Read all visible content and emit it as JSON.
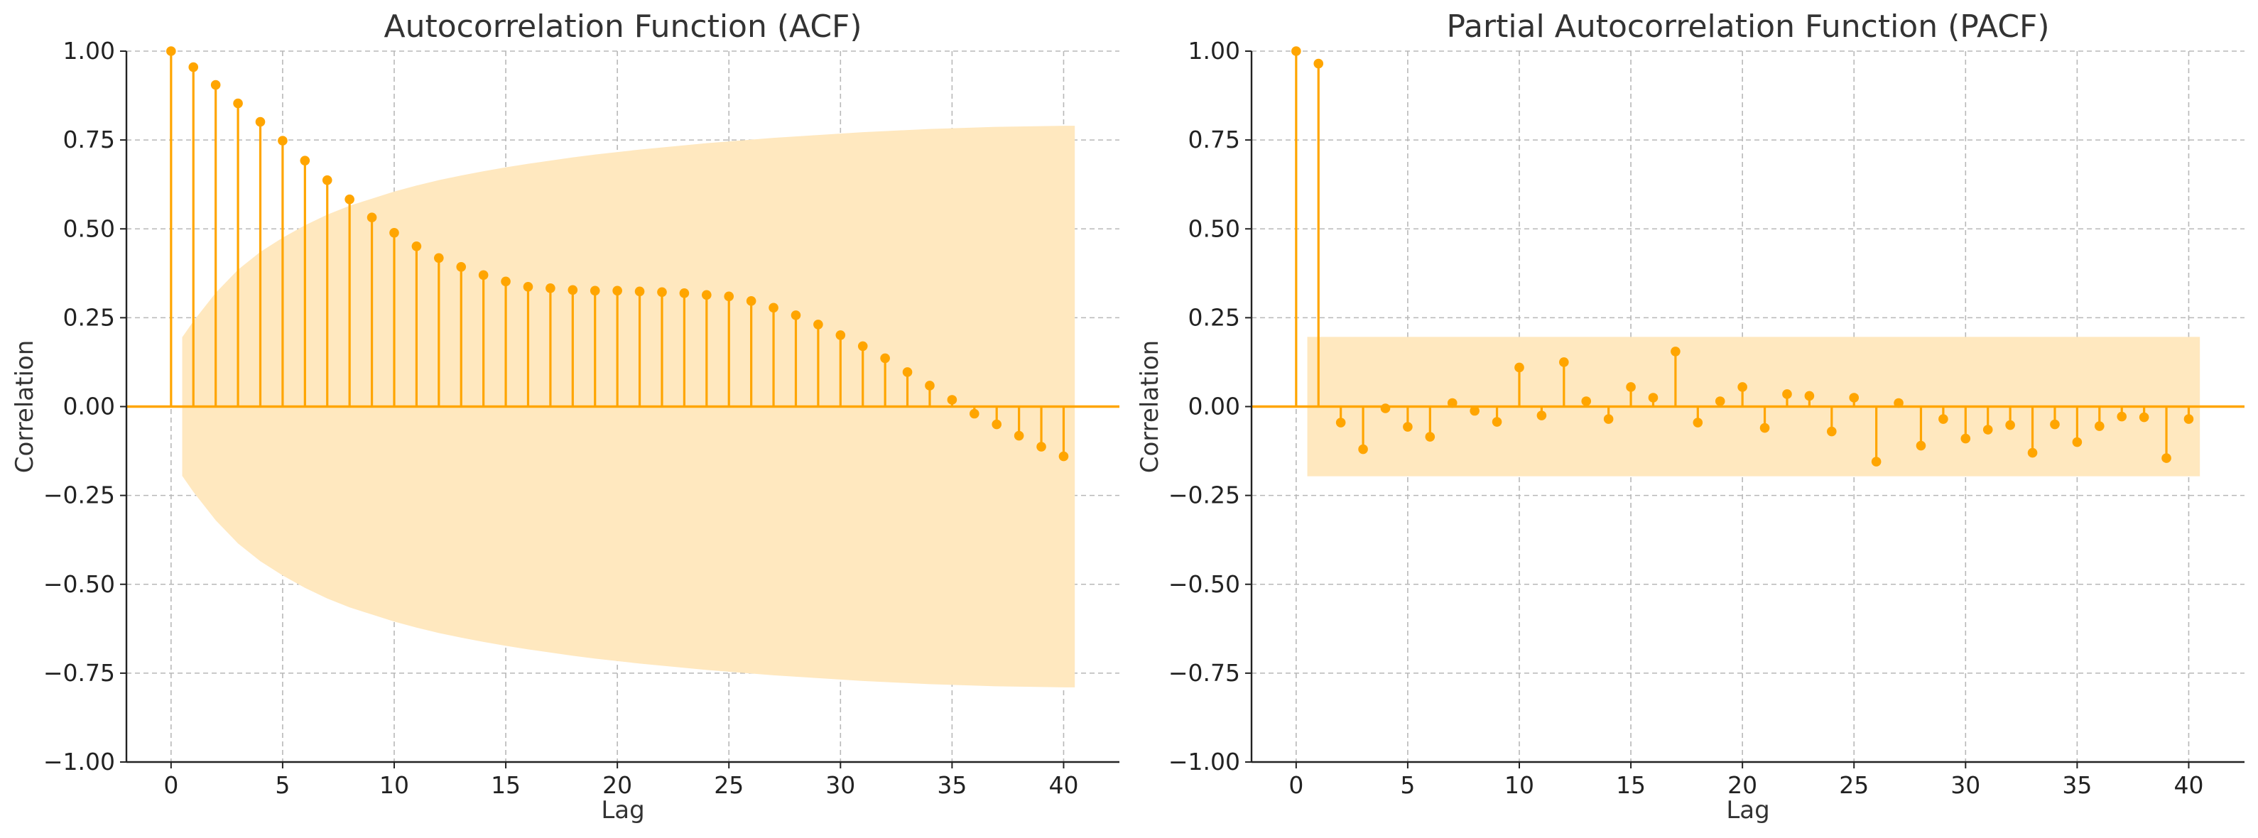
{
  "colors": {
    "stem": "#FFA500",
    "confidence_band": "#FFE8BF",
    "grid": "#B8B8B8",
    "text": "#333333"
  },
  "chart_data": [
    {
      "type": "stem",
      "title": "Autocorrelation Function (ACF)",
      "xlabel": "Lag",
      "ylabel": "Correlation",
      "xlim": [
        -2,
        42.5
      ],
      "ylim": [
        -1.0,
        1.0
      ],
      "xticks": [
        0,
        5,
        10,
        15,
        20,
        25,
        30,
        35,
        40
      ],
      "xtick_labels": [
        "0",
        "5",
        "10",
        "15",
        "20",
        "25",
        "30",
        "35",
        "40"
      ],
      "yticks": [
        -1.0,
        -0.75,
        -0.5,
        -0.25,
        0.0,
        0.25,
        0.5,
        0.75,
        1.0
      ],
      "ytick_labels": [
        "−1.00",
        "−0.75",
        "−0.50",
        "−0.25",
        "0.00",
        "0.25",
        "0.50",
        "0.75",
        "1.00"
      ],
      "grid": true,
      "lags": [
        0,
        1,
        2,
        3,
        4,
        5,
        6,
        7,
        8,
        9,
        10,
        11,
        12,
        13,
        14,
        15,
        16,
        17,
        18,
        19,
        20,
        21,
        22,
        23,
        24,
        25,
        26,
        27,
        28,
        29,
        30,
        31,
        32,
        33,
        34,
        35,
        36,
        37,
        38,
        39,
        40
      ],
      "values": [
        1.0,
        0.955,
        0.905,
        0.853,
        0.801,
        0.748,
        0.692,
        0.637,
        0.583,
        0.532,
        0.489,
        0.451,
        0.418,
        0.393,
        0.37,
        0.352,
        0.337,
        0.333,
        0.328,
        0.326,
        0.326,
        0.324,
        0.322,
        0.319,
        0.314,
        0.31,
        0.297,
        0.278,
        0.257,
        0.231,
        0.201,
        0.17,
        0.136,
        0.097,
        0.059,
        0.019,
        -0.02,
        -0.05,
        -0.082,
        -0.113,
        -0.14
      ],
      "confidence_band": {
        "lags": [
          0.5,
          1,
          2,
          3,
          4,
          5,
          6,
          7,
          8,
          9,
          10,
          11,
          12,
          13,
          14,
          15,
          16,
          17,
          18,
          19,
          20,
          21,
          22,
          23,
          24,
          25,
          26,
          27,
          28,
          29,
          30,
          31,
          32,
          33,
          34,
          35,
          36,
          37,
          38,
          39,
          40,
          40.5
        ],
        "upper": [
          0.195,
          0.24,
          0.32,
          0.385,
          0.435,
          0.475,
          0.51,
          0.54,
          0.565,
          0.585,
          0.605,
          0.622,
          0.637,
          0.65,
          0.662,
          0.673,
          0.683,
          0.692,
          0.701,
          0.709,
          0.716,
          0.723,
          0.729,
          0.735,
          0.741,
          0.746,
          0.751,
          0.756,
          0.76,
          0.764,
          0.768,
          0.772,
          0.775,
          0.778,
          0.781,
          0.783,
          0.785,
          0.787,
          0.788,
          0.789,
          0.79,
          0.79
        ]
      }
    },
    {
      "type": "stem",
      "title": "Partial Autocorrelation Function (PACF)",
      "xlabel": "Lag",
      "ylabel": "Correlation",
      "xlim": [
        -2,
        42.5
      ],
      "ylim": [
        -1.0,
        1.0
      ],
      "xticks": [
        0,
        5,
        10,
        15,
        20,
        25,
        30,
        35,
        40
      ],
      "xtick_labels": [
        "0",
        "5",
        "10",
        "15",
        "20",
        "25",
        "30",
        "35",
        "40"
      ],
      "yticks": [
        -1.0,
        -0.75,
        -0.5,
        -0.25,
        0.0,
        0.25,
        0.5,
        0.75,
        1.0
      ],
      "ytick_labels": [
        "−1.00",
        "−0.75",
        "−0.50",
        "−0.25",
        "0.00",
        "0.25",
        "0.50",
        "0.75",
        "1.00"
      ],
      "grid": true,
      "lags": [
        0,
        1,
        2,
        3,
        4,
        5,
        6,
        7,
        8,
        9,
        10,
        11,
        12,
        13,
        14,
        15,
        16,
        17,
        18,
        19,
        20,
        21,
        22,
        23,
        24,
        25,
        26,
        27,
        28,
        29,
        30,
        31,
        32,
        33,
        34,
        35,
        36,
        37,
        38,
        39,
        40
      ],
      "values": [
        1.0,
        0.965,
        -0.045,
        -0.12,
        -0.005,
        -0.057,
        -0.085,
        0.01,
        -0.012,
        -0.043,
        0.11,
        -0.025,
        0.125,
        0.015,
        -0.035,
        0.055,
        0.025,
        0.155,
        -0.045,
        0.015,
        0.055,
        -0.06,
        0.035,
        0.03,
        -0.07,
        0.025,
        -0.155,
        0.01,
        -0.11,
        -0.035,
        -0.09,
        -0.065,
        -0.052,
        -0.13,
        -0.05,
        -0.1,
        -0.055,
        -0.028,
        -0.03,
        -0.145,
        -0.035
      ],
      "confidence_band": {
        "lags": [
          0.5,
          40.5
        ],
        "upper": [
          0.196,
          0.196
        ]
      }
    }
  ]
}
